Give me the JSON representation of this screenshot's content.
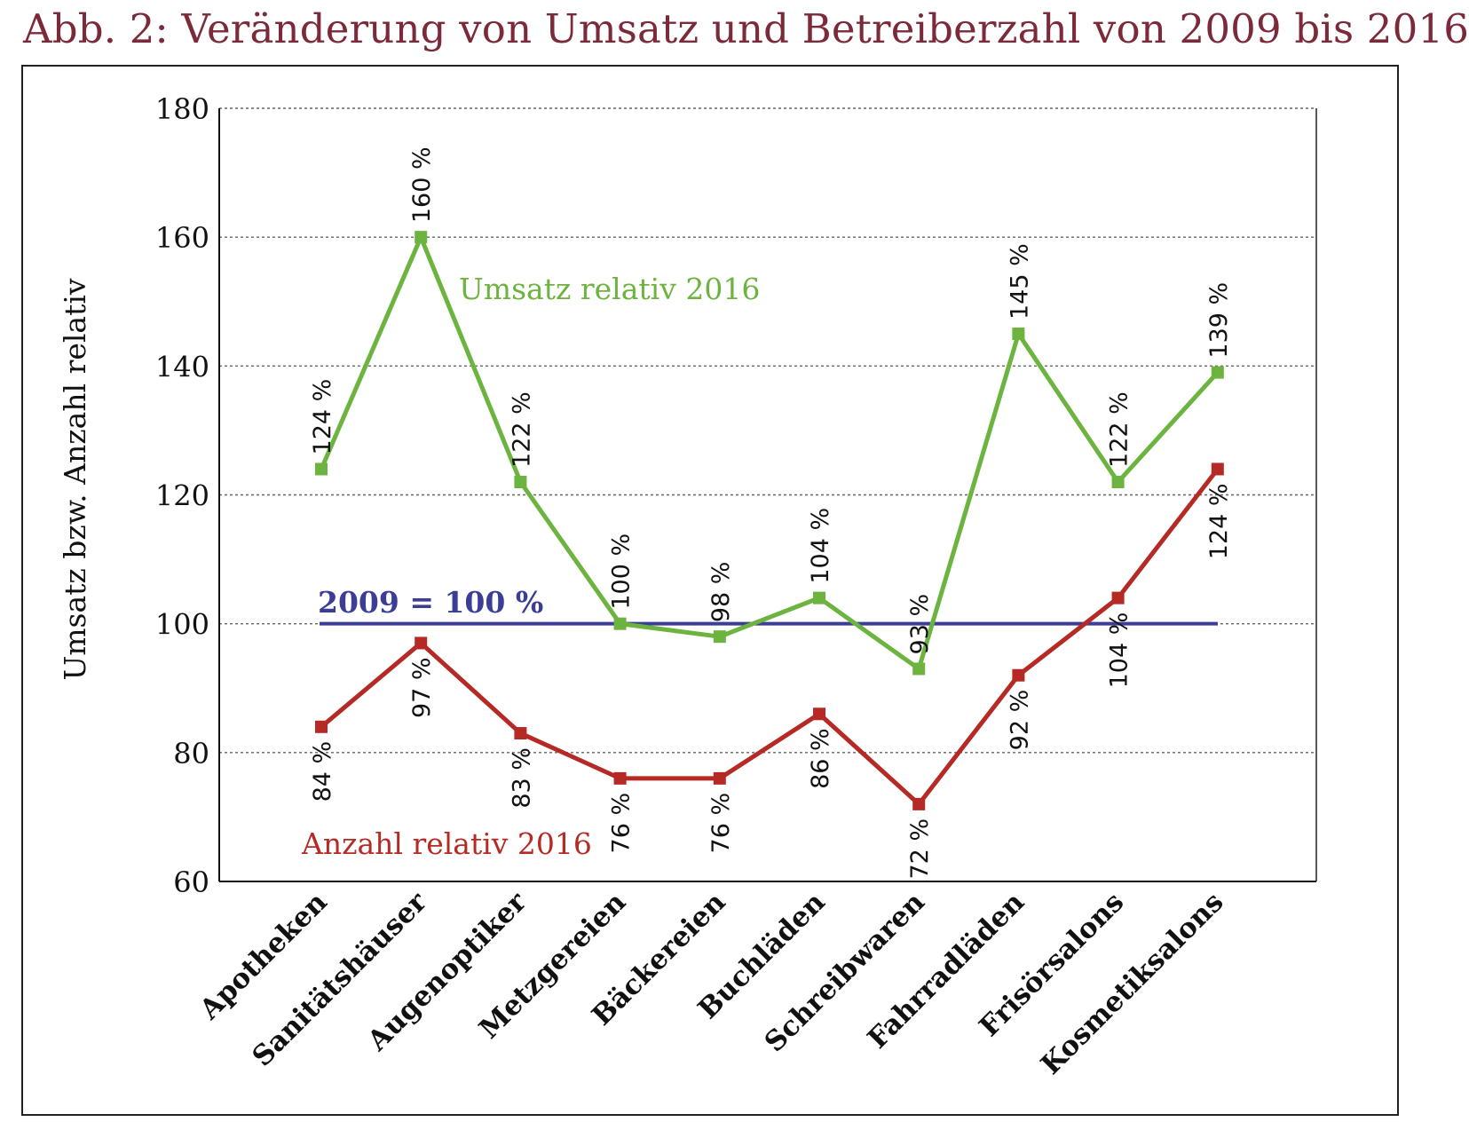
{
  "title": "Abb. 2: Veränderung von Umsatz und Betreiberzahl von 2009 bis 2016",
  "chart_data": {
    "type": "line",
    "ylabel": "Umsatz bzw. Anzahl relativ",
    "xlabel": "",
    "ylim": [
      60,
      180
    ],
    "yticks": [
      60,
      80,
      100,
      120,
      140,
      160,
      180
    ],
    "grid": "horizontal dashed",
    "categories": [
      "Apotheken",
      "Sanitätshäuser",
      "Augenoptiker",
      "Metzgereien",
      "Bäckereien",
      "Buchläden",
      "Schreibwaren",
      "Fahrradläden",
      "Frisörsalons",
      "Kosmetiksalons"
    ],
    "series": [
      {
        "name": "Umsatz relativ 2016",
        "color": "#6cb33f",
        "values": [
          124,
          160,
          122,
          100,
          98,
          104,
          93,
          145,
          122,
          139
        ],
        "labels": [
          "124 %",
          "160 %",
          "122 %",
          "100 %",
          "98 %",
          "104 %",
          "93 %",
          "145 %",
          "122 %",
          "139 %"
        ]
      },
      {
        "name": "Anzahl relativ 2016",
        "color": "#b52a25",
        "values": [
          84,
          97,
          83,
          76,
          76,
          86,
          72,
          92,
          104,
          124
        ],
        "labels": [
          "84 %",
          "97 %",
          "83 %",
          "76 %",
          "76 %",
          "86 %",
          "72 %",
          "92 %",
          "104 %",
          "124 %"
        ]
      }
    ],
    "reference_line": {
      "label": "2009 = 100 %",
      "value": 100,
      "color": "#3b3d97"
    }
  }
}
